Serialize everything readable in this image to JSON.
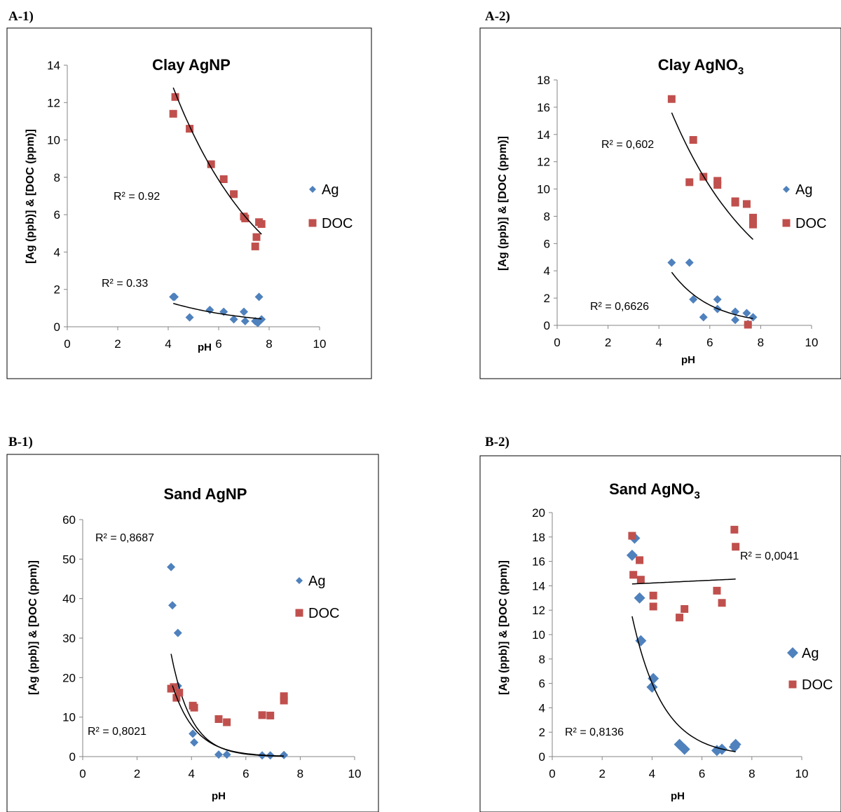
{
  "colors": {
    "ag": "#4f81bd",
    "doc": "#c0504d",
    "axis": "#868686",
    "frame": "#000000",
    "trend": "#000000"
  },
  "panels": [
    {
      "label": "A-1)"
    },
    {
      "label": "A-2)"
    },
    {
      "label": "B-1)"
    },
    {
      "label": "B-2)"
    }
  ],
  "chart_data": [
    {
      "type": "scatter",
      "title": "Clay AgNP",
      "title_sub": "",
      "xlabel": "pH",
      "ylabel": "[Ag (ppb)]  &  [DOC (ppm)]",
      "xlim": [
        0,
        10
      ],
      "ylim": [
        0,
        14
      ],
      "xticks": [
        0,
        2,
        4,
        6,
        8,
        10
      ],
      "yticks": [
        0,
        2,
        4,
        6,
        8,
        10,
        12,
        14
      ],
      "grid": false,
      "legend": "right",
      "series": [
        {
          "name": "Ag",
          "marker": "diamond",
          "x": [
            4.2,
            4.25,
            4.85,
            5.65,
            6.2,
            6.6,
            7.0,
            7.05,
            7.45,
            7.55,
            7.6,
            7.7
          ],
          "y": [
            1.6,
            1.6,
            0.5,
            0.9,
            0.8,
            0.4,
            0.8,
            0.3,
            0.3,
            0.2,
            1.6,
            0.4
          ],
          "trend": {
            "kind": "exp",
            "from": 4.2,
            "to": 7.7,
            "y0": 1.25,
            "y1": 0.42
          },
          "r2": "R² = 0.33"
        },
        {
          "name": "DOC",
          "marker": "square",
          "x": [
            4.2,
            4.28,
            4.85,
            5.7,
            6.2,
            6.6,
            7.0,
            7.05,
            7.45,
            7.5,
            7.6,
            7.7
          ],
          "y": [
            11.4,
            12.3,
            10.6,
            8.7,
            7.9,
            7.1,
            5.9,
            5.8,
            4.3,
            4.8,
            5.6,
            5.5
          ],
          "trend": {
            "kind": "exp",
            "from": 4.2,
            "to": 7.7,
            "y0": 12.8,
            "y1": 4.95
          },
          "r2": "R² = 0.92"
        }
      ]
    },
    {
      "type": "scatter",
      "title": "Clay AgNO",
      "title_sub": "3",
      "xlabel": "pH",
      "ylabel": "[Ag (ppb)]  &  [DOC (ppm)]",
      "xlim": [
        0,
        10
      ],
      "ylim": [
        0,
        18
      ],
      "xticks": [
        0,
        2,
        4,
        6,
        8,
        10
      ],
      "yticks": [
        0,
        2,
        4,
        6,
        8,
        10,
        12,
        14,
        16,
        18
      ],
      "grid": false,
      "legend": "right",
      "series": [
        {
          "name": "Ag",
          "marker": "diamond",
          "x": [
            4.5,
            5.2,
            5.35,
            5.75,
            6.3,
            6.3,
            7.0,
            7.0,
            7.45,
            7.5,
            7.7
          ],
          "y": [
            4.6,
            4.6,
            1.9,
            0.6,
            1.9,
            1.2,
            1.0,
            0.4,
            0.9,
            0.1,
            0.6
          ],
          "trend": {
            "kind": "exp",
            "from": 4.5,
            "to": 7.7,
            "y0": 3.9,
            "y1": 0.5
          },
          "r2": "R² = 0,6626"
        },
        {
          "name": "DOC",
          "marker": "square",
          "x": [
            4.5,
            5.2,
            5.35,
            5.75,
            6.3,
            6.3,
            7.0,
            7.0,
            7.45,
            7.5,
            7.7,
            7.7
          ],
          "y": [
            16.6,
            10.5,
            13.6,
            10.9,
            10.6,
            10.3,
            9.1,
            9.0,
            8.9,
            0.05,
            7.9,
            7.4
          ],
          "trend": {
            "kind": "exp",
            "from": 4.5,
            "to": 7.7,
            "y0": 15.6,
            "y1": 6.3
          },
          "r2": "R² = 0,602"
        }
      ]
    },
    {
      "type": "scatter",
      "title": "Sand AgNP",
      "title_sub": "",
      "xlabel": "pH",
      "ylabel": "[Ag (ppb)]  &  [DOC (ppm)]",
      "xlim": [
        0,
        10
      ],
      "ylim": [
        0,
        60
      ],
      "xticks": [
        0,
        2,
        4,
        6,
        8,
        10
      ],
      "yticks": [
        0,
        10,
        20,
        30,
        40,
        50,
        60
      ],
      "grid": false,
      "legend": "right",
      "series": [
        {
          "name": "Ag",
          "marker": "diamond",
          "x": [
            3.25,
            3.3,
            3.5,
            3.5,
            4.05,
            4.1,
            5.0,
            5.3,
            6.6,
            6.9,
            7.4
          ],
          "y": [
            48.0,
            38.3,
            31.3,
            17.9,
            5.8,
            3.6,
            0.5,
            0.5,
            0.3,
            0.3,
            0.4
          ],
          "trend": {
            "kind": "exp",
            "from": 3.25,
            "to": 7.4,
            "y0": 26.0,
            "y1": 0.1
          },
          "r2": "R² = 0,8021"
        },
        {
          "name": "DOC",
          "marker": "square",
          "x": [
            3.25,
            3.35,
            3.45,
            3.55,
            4.05,
            4.1,
            5.0,
            5.3,
            6.6,
            6.9,
            7.4,
            7.4
          ],
          "y": [
            17.2,
            17.6,
            14.9,
            16.2,
            12.9,
            12.4,
            9.5,
            8.7,
            10.5,
            10.4,
            15.3,
            14.2
          ],
          "trend": {
            "kind": "exp",
            "from": 3.3,
            "to": 7.4,
            "y0": 18.0,
            "y1": 0.15
          },
          "r2": "R² = 0,8687"
        }
      ]
    },
    {
      "type": "scatter",
      "title": "Sand AgNO",
      "title_sub": "3",
      "xlabel": "pH",
      "ylabel": "[Ag (ppb)]  &  [DOC (ppm)]",
      "xlim": [
        0,
        10
      ],
      "ylim": [
        0,
        20
      ],
      "xticks": [
        0,
        2,
        4,
        6,
        8,
        10
      ],
      "yticks": [
        0,
        2,
        4,
        6,
        8,
        10,
        12,
        14,
        16,
        18,
        20
      ],
      "grid": false,
      "legend": "right",
      "series": [
        {
          "name": "Ag",
          "marker": "diamond",
          "x": [
            3.2,
            3.3,
            3.5,
            3.55,
            4.0,
            4.05,
            5.1,
            5.3,
            6.6,
            6.8,
            7.3,
            7.35
          ],
          "y": [
            16.5,
            17.9,
            13.0,
            9.5,
            5.7,
            6.4,
            1.0,
            0.6,
            0.5,
            0.6,
            0.8,
            1.0
          ],
          "trend": {
            "kind": "exp",
            "from": 3.2,
            "to": 7.35,
            "y0": 11.5,
            "y1": 0.4
          },
          "r2": "R² = 0,8136"
        },
        {
          "name": "DOC",
          "marker": "square",
          "x": [
            3.2,
            3.25,
            3.5,
            3.55,
            4.05,
            4.05,
            5.1,
            5.3,
            6.6,
            6.8,
            7.3,
            7.35
          ],
          "y": [
            18.1,
            14.9,
            16.1,
            14.5,
            13.2,
            12.3,
            11.4,
            12.1,
            13.6,
            12.6,
            18.6,
            17.2
          ],
          "trend": {
            "kind": "linear",
            "from": 3.2,
            "to": 7.35,
            "y0": 14.15,
            "y1": 14.55
          },
          "r2": "R² = 0,0041"
        }
      ]
    }
  ]
}
